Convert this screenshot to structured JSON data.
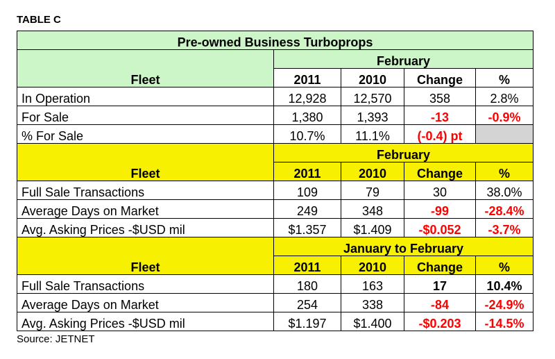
{
  "label": "TABLE C",
  "title": "Pre-owned Business Turboprops",
  "source": "Source: JETNET",
  "sections": [
    {
      "fleet": "Fleet",
      "period": "February",
      "columns": [
        "2011",
        "2010",
        "Change",
        "%"
      ],
      "rows": [
        {
          "label": "In Operation",
          "y2011": "12,928",
          "y2010": "12,570",
          "change": "358",
          "pct": "2.8%"
        },
        {
          "label": "For Sale",
          "y2011": "1,380",
          "y2010": "1,393",
          "change": "-13",
          "pct": "-0.9%"
        },
        {
          "label": "% For Sale",
          "y2011": "10.7%",
          "y2010": "11.1%",
          "change": "(-0.4) pt",
          "pct": ""
        }
      ]
    },
    {
      "fleet": "Fleet",
      "period": "February",
      "columns": [
        "2011",
        "2010",
        "Change",
        "%"
      ],
      "rows": [
        {
          "label": "Full Sale Transactions",
          "y2011": "109",
          "y2010": "79",
          "change": "30",
          "pct": "38.0%"
        },
        {
          "label": "Average Days on Market",
          "y2011": "249",
          "y2010": "348",
          "change": "-99",
          "pct": "-28.4%"
        },
        {
          "label": "Avg. Asking Prices -$USD mil",
          "y2011": "$1.357",
          "y2010": "$1.409",
          "change": "-$0.052",
          "pct": "-3.7%"
        }
      ]
    },
    {
      "fleet": "Fleet",
      "period": "January to February",
      "columns": [
        "2011",
        "2010",
        "Change",
        "%"
      ],
      "rows": [
        {
          "label": "Full Sale Transactions",
          "y2011": "180",
          "y2010": "163",
          "change": "17",
          "pct": "10.4%"
        },
        {
          "label": "Average Days on Market",
          "y2011": "254",
          "y2010": "338",
          "change": "-84",
          "pct": "-24.9%"
        },
        {
          "label": "Avg. Asking Prices -$USD mil",
          "y2011": "$1.197",
          "y2010": "$1.400",
          "change": "-$0.203",
          "pct": "-14.5%"
        }
      ]
    }
  ],
  "colors": {
    "green_header": "#ccf5c8",
    "yellow_header": "#f7f000",
    "negative": "#ff0000",
    "gray_cell": "#d4d4d4"
  }
}
